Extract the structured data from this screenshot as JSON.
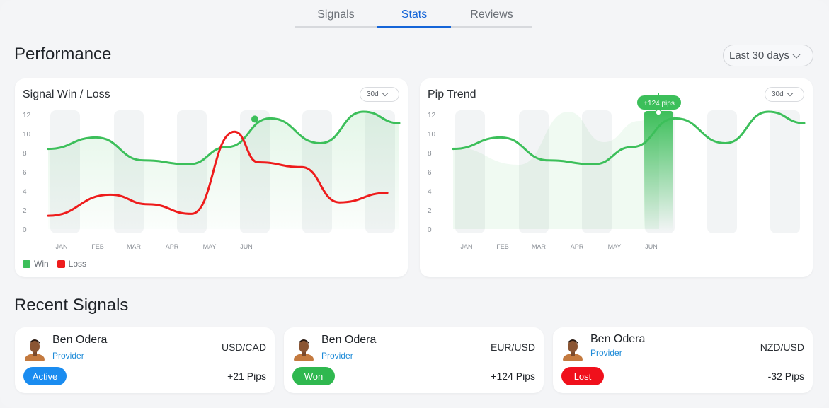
{
  "tabs": [
    {
      "label": "Signals",
      "active": false
    },
    {
      "label": "Stats",
      "active": true
    },
    {
      "label": "Reviews",
      "active": false
    }
  ],
  "performance": {
    "title": "Performance",
    "range_label": "Last 30 days"
  },
  "colors": {
    "win": "#3cbf5a",
    "loss": "#ee1c1c",
    "accent": "#1565d8",
    "active_badge": "#1a8cf0",
    "won_badge": "#2fb84f",
    "lost_badge": "#f0101c"
  },
  "chart_data": [
    {
      "type": "line",
      "title": "Signal Win / Loss",
      "range_chip": "30d",
      "categories": [
        "JAN",
        "FEB",
        "MAR",
        "APR",
        "MAY",
        "JUN"
      ],
      "yticks": [
        "12",
        "10",
        "8",
        "6",
        "4",
        "2",
        "0"
      ],
      "ylim": [
        0,
        12
      ],
      "series": [
        {
          "name": "Win",
          "values": [
            8.4,
            9.6,
            7.2,
            6.8,
            8.6,
            11.6,
            9.0,
            12.3,
            11.1
          ],
          "x": [
            0,
            1,
            2,
            2.95,
            3.75,
            4.65,
            5.7,
            6.6,
            7.35
          ]
        },
        {
          "name": "Loss",
          "values": [
            1.4,
            3.6,
            2.6,
            1.6,
            10.2,
            7.0,
            6.5,
            2.8,
            3.8
          ],
          "x": [
            0,
            1.3,
            2.1,
            3.0,
            3.9,
            4.4,
            5.3,
            6.1,
            7.1
          ]
        }
      ],
      "highlight_x": 4.9,
      "legend": [
        "Win",
        "Loss"
      ]
    },
    {
      "type": "line",
      "title": "Pip Trend",
      "range_chip": "30d",
      "categories": [
        "JAN",
        "FEB",
        "MAR",
        "APR",
        "MAY",
        "JUN"
      ],
      "yticks": [
        "12",
        "10",
        "8",
        "6",
        "4",
        "2",
        "0"
      ],
      "ylim": [
        0,
        12
      ],
      "series": [
        {
          "name": "Pips",
          "values": [
            8.4,
            9.6,
            7.2,
            6.8,
            8.6,
            11.6,
            9.0,
            12.3,
            11.1
          ],
          "x": [
            0,
            1,
            2,
            2.95,
            3.75,
            4.65,
            5.7,
            6.6,
            7.35
          ]
        }
      ],
      "tooltip": "+124 pips",
      "highlight_category": "JUN"
    }
  ],
  "recent": {
    "title": "Recent Signals",
    "signals": [
      {
        "name": "Ben Odera",
        "role": "Provider",
        "pair": "USD/CAD",
        "status": "Active",
        "pips": "+21 Pips"
      },
      {
        "name": "Ben Odera",
        "role": "Provider",
        "pair": "EUR/USD",
        "status": "Won",
        "pips": "+124 Pips"
      },
      {
        "name": "Ben Odera",
        "role": "Provider",
        "pair": "NZD/USD",
        "status": "Lost",
        "pips": "-32 Pips"
      }
    ]
  }
}
